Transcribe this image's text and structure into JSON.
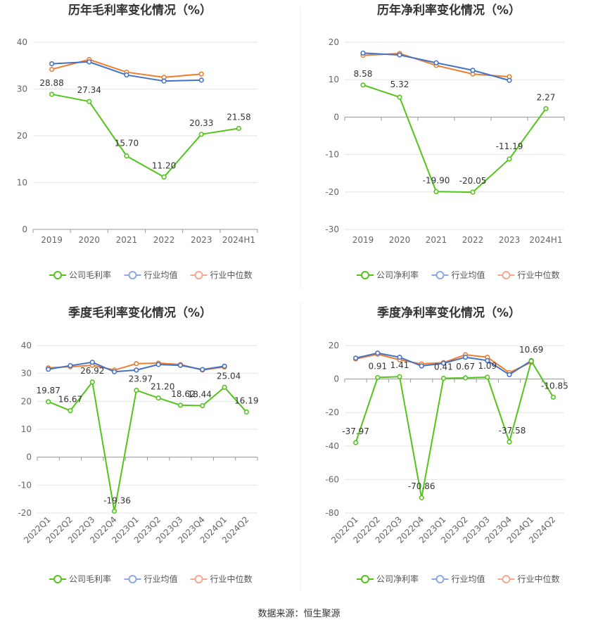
{
  "source": "数据来源：恒生聚源",
  "chart_data": [
    {
      "type": "line",
      "title": "历年毛利率变化情况（%）",
      "categories": [
        "2019",
        "2020",
        "2021",
        "2022",
        "2023",
        "2024H1"
      ],
      "ylim": [
        0,
        40
      ],
      "yticks": [
        0,
        10,
        20,
        30,
        40
      ],
      "ytick_labels": [
        "0",
        "10",
        "20",
        "30",
        "40"
      ],
      "grid": true,
      "legend_position": "bottom",
      "series": [
        {
          "name": "公司毛利率",
          "color": "#52c41a",
          "labeled": true,
          "values": [
            28.88,
            27.34,
            15.7,
            11.2,
            20.33,
            21.58
          ],
          "labels": [
            "28.88",
            "27.34",
            "15.70",
            "11.20",
            "20.33",
            "21.58"
          ]
        },
        {
          "name": "行业均值",
          "color": "#4472c4",
          "labeled": false,
          "values": [
            35.4,
            35.8,
            33.0,
            31.7,
            31.9,
            null
          ]
        },
        {
          "name": "行业中位数",
          "color": "#ed7d31",
          "labeled": false,
          "values": [
            34.2,
            36.3,
            33.6,
            32.5,
            33.2,
            null
          ]
        }
      ]
    },
    {
      "type": "line",
      "title": "历年净利率变化情况（%）",
      "categories": [
        "2019",
        "2020",
        "2021",
        "2022",
        "2023",
        "2024H1"
      ],
      "ylim": [
        -30,
        20
      ],
      "yticks": [
        -30,
        -20,
        -10,
        0,
        10,
        20
      ],
      "ytick_labels": [
        "-30",
        "-20",
        "-10",
        "0",
        "10",
        "20"
      ],
      "grid": true,
      "legend_position": "bottom",
      "series": [
        {
          "name": "公司净利率",
          "color": "#52c41a",
          "labeled": true,
          "values": [
            8.58,
            5.32,
            -19.9,
            -20.05,
            -11.19,
            2.27
          ],
          "labels": [
            "8.58",
            "5.32",
            "-19.90",
            "-20.05",
            "-11.19",
            "2.27"
          ]
        },
        {
          "name": "行业均值",
          "color": "#4472c4",
          "labeled": false,
          "values": [
            17.1,
            16.6,
            14.5,
            12.5,
            9.8,
            null
          ]
        },
        {
          "name": "行业中位数",
          "color": "#ed7d31",
          "labeled": false,
          "values": [
            16.5,
            17.0,
            13.8,
            11.5,
            10.8,
            null
          ]
        }
      ]
    },
    {
      "type": "line",
      "title": "季度毛利率变化情况（%）",
      "categories": [
        "2022Q1",
        "2022Q2",
        "2022Q3",
        "2022Q4",
        "2023Q1",
        "2023Q2",
        "2023Q3",
        "2023Q4",
        "2024Q1",
        "2024Q2"
      ],
      "ylim": [
        -20,
        40
      ],
      "yticks": [
        -20,
        -10,
        0,
        10,
        20,
        30,
        40
      ],
      "ytick_labels": [
        "-20",
        "-10",
        "0",
        "10",
        "20",
        "30",
        "40"
      ],
      "grid": true,
      "legend_position": "bottom",
      "series": [
        {
          "name": "公司毛利率",
          "color": "#52c41a",
          "labeled": true,
          "values": [
            19.87,
            16.67,
            26.92,
            -19.36,
            23.97,
            21.2,
            18.62,
            18.44,
            25.04,
            16.19
          ],
          "labels": [
            "19.87",
            "16.67",
            "26.92",
            "-19.36",
            "23.97",
            "21.20",
            "18.62",
            "18.44",
            "25.04",
            "16.19"
          ]
        },
        {
          "name": "行业均值",
          "color": "#4472c4",
          "labeled": false,
          "values": [
            31.5,
            32.8,
            34.0,
            30.6,
            31.2,
            33.2,
            32.9,
            31.4,
            32.6,
            null
          ]
        },
        {
          "name": "行业中位数",
          "color": "#ed7d31",
          "labeled": false,
          "values": [
            32.0,
            32.4,
            32.9,
            31.2,
            33.5,
            33.7,
            33.2,
            31.2,
            32.3,
            null
          ]
        }
      ]
    },
    {
      "type": "line",
      "title": "季度净利率变化情况（%）",
      "categories": [
        "2022Q1",
        "2022Q2",
        "2022Q3",
        "2022Q4",
        "2023Q1",
        "2023Q2",
        "2023Q3",
        "2023Q4",
        "2024Q1",
        "2024Q2"
      ],
      "ylim": [
        -80,
        20
      ],
      "yticks": [
        -80,
        -60,
        -40,
        -20,
        0,
        20
      ],
      "ytick_labels": [
        "-80",
        "-60",
        "-40",
        "-20",
        "0",
        "20"
      ],
      "grid": true,
      "legend_position": "bottom",
      "series": [
        {
          "name": "公司净利率",
          "color": "#52c41a",
          "labeled": true,
          "values": [
            -37.97,
            0.91,
            1.41,
            -70.86,
            0.41,
            0.67,
            1.09,
            -37.58,
            10.69,
            -10.85
          ],
          "labels": [
            "-37.97",
            "0.91",
            "1.41",
            "-70.86",
            "0.41",
            "0.67",
            "1.09",
            "-37.58",
            "10.69",
            "-10.85"
          ]
        },
        {
          "name": "行业均值",
          "color": "#4472c4",
          "labeled": false,
          "values": [
            12.5,
            15.5,
            13.0,
            7.8,
            9.4,
            13.0,
            11.0,
            2.6,
            11.0,
            null
          ]
        },
        {
          "name": "行业中位数",
          "color": "#ed7d31",
          "labeled": false,
          "values": [
            12.0,
            14.8,
            11.5,
            9.0,
            9.8,
            14.5,
            13.0,
            3.8,
            10.0,
            null
          ]
        }
      ]
    }
  ]
}
